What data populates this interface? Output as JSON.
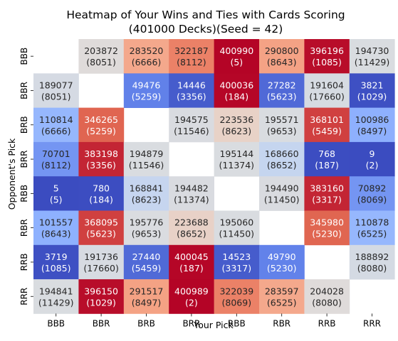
{
  "chart_data": {
    "type": "heatmap",
    "title": "Heatmap of Your Wins and Ties with Cards Scoring",
    "subtitle": "(401000 Decks)(Seed = 42)",
    "xlabel": "Your Pick",
    "ylabel": "Opponent's Pick",
    "x_categories": [
      "BBB",
      "BBR",
      "BRB",
      "BRR",
      "RBB",
      "RBR",
      "RRB",
      "RRR"
    ],
    "y_categories": [
      "BBB",
      "BBR",
      "BRB",
      "BRR",
      "RBB",
      "RBR",
      "RRB",
      "RRR"
    ],
    "colormap": "coolwarm",
    "color_range": [
      0,
      401000
    ],
    "colorbar": false,
    "wins": [
      [
        null,
        203872,
        283520,
        322187,
        400990,
        290800,
        396196,
        194730
      ],
      [
        189077,
        null,
        49476,
        14446,
        400036,
        27282,
        191604,
        3821
      ],
      [
        110814,
        346265,
        null,
        194575,
        223536,
        195571,
        368101,
        100986
      ],
      [
        70701,
        383198,
        194879,
        null,
        195144,
        168660,
        768,
        9
      ],
      [
        5,
        780,
        168841,
        194482,
        null,
        194490,
        383160,
        70892
      ],
      [
        101557,
        368095,
        195776,
        223688,
        195060,
        null,
        345980,
        110878
      ],
      [
        3719,
        191736,
        27440,
        400045,
        14523,
        49790,
        null,
        188892
      ],
      [
        194841,
        396150,
        291517,
        400989,
        322039,
        283597,
        204028,
        null
      ]
    ],
    "ties": [
      [
        null,
        8051,
        6666,
        8112,
        5,
        8643,
        1085,
        11429
      ],
      [
        8051,
        null,
        5259,
        3356,
        184,
        5623,
        17660,
        1029
      ],
      [
        6666,
        5259,
        null,
        11546,
        8623,
        9653,
        5459,
        8497
      ],
      [
        8112,
        3356,
        11546,
        null,
        11374,
        8652,
        187,
        2
      ],
      [
        5,
        184,
        8623,
        11374,
        null,
        11450,
        3317,
        8069
      ],
      [
        8643,
        5623,
        9653,
        8652,
        11450,
        null,
        5230,
        6525
      ],
      [
        1085,
        17660,
        5459,
        187,
        3317,
        5230,
        null,
        8080
      ],
      [
        11429,
        1029,
        8497,
        2,
        8069,
        6525,
        8080,
        null
      ]
    ]
  }
}
